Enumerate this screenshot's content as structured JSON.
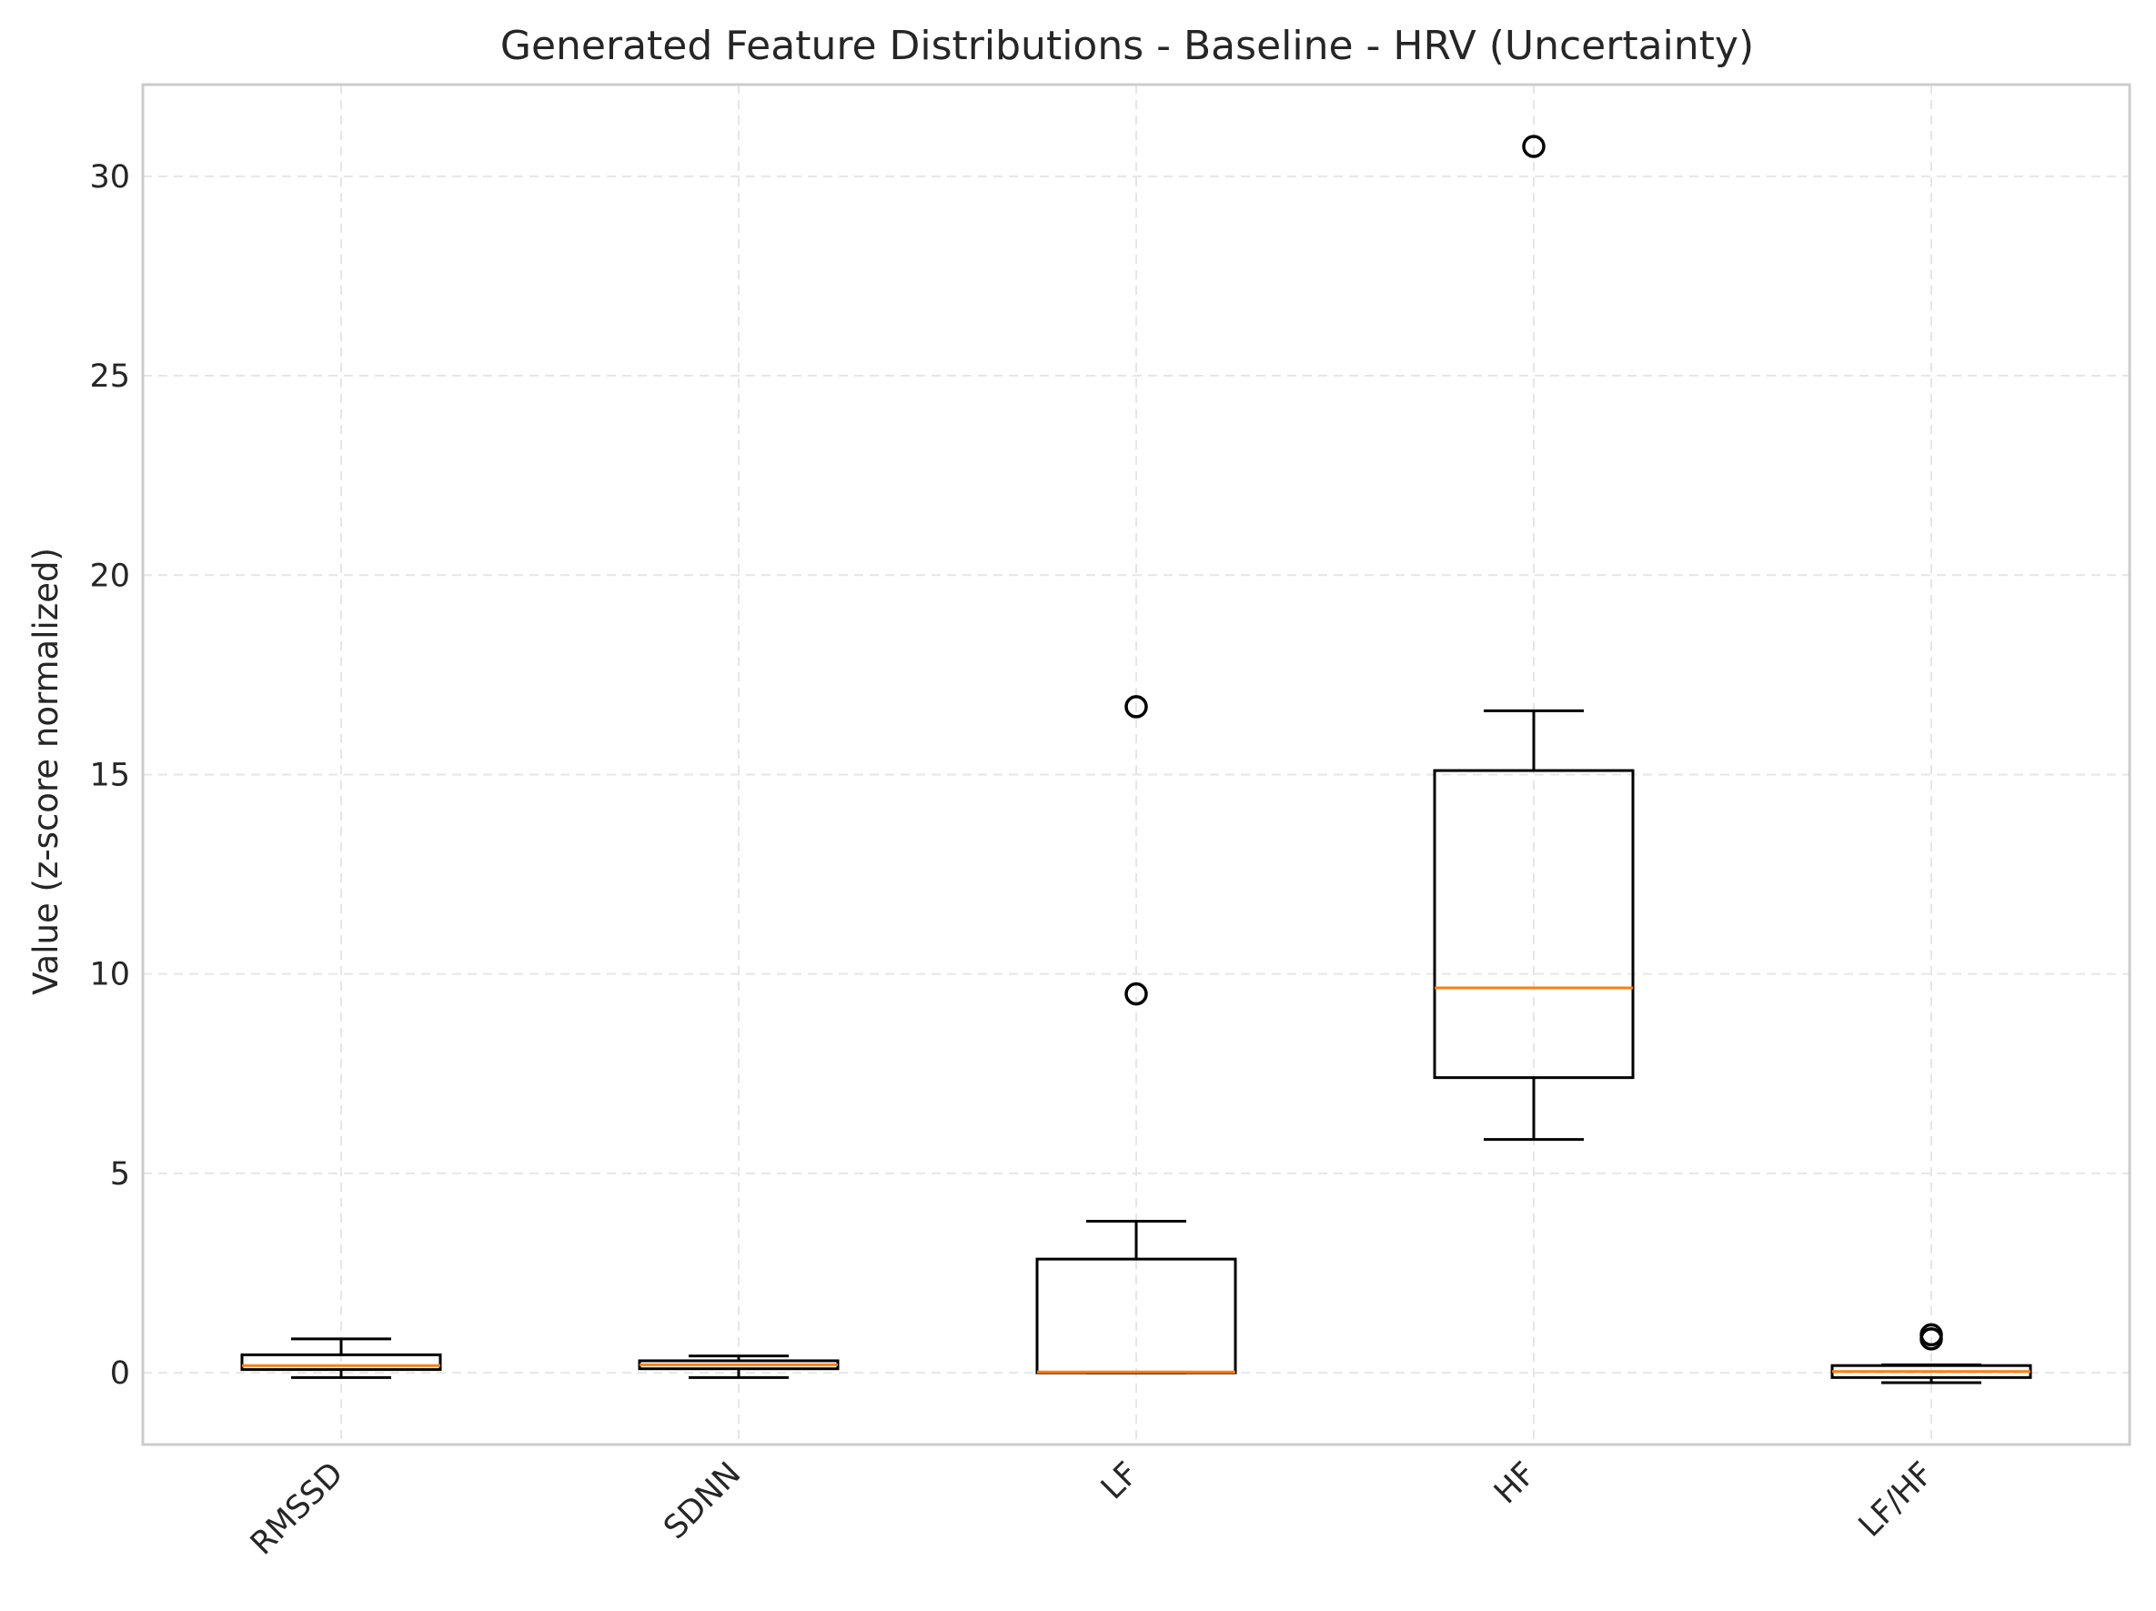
{
  "chart_data": {
    "type": "boxplot",
    "title": "Generated Feature Distributions - Baseline - HRV (Uncertainty)",
    "xlabel": "",
    "ylabel": "Value (z-score normalized)",
    "ylim": [
      -1.8,
      32.3
    ],
    "yticks": [
      0,
      5,
      10,
      15,
      20,
      25,
      30
    ],
    "categories": [
      "RMSSD",
      "SDNN",
      "LF",
      "HF",
      "LF/HF"
    ],
    "boxes": [
      {
        "label": "RMSSD",
        "whisker_low": -0.12,
        "q1": 0.08,
        "median": 0.18,
        "q3": 0.45,
        "whisker_high": 0.85,
        "outliers": []
      },
      {
        "label": "SDNN",
        "whisker_low": -0.12,
        "q1": 0.1,
        "median": 0.2,
        "q3": 0.3,
        "whisker_high": 0.42,
        "outliers": []
      },
      {
        "label": "LF",
        "whisker_low": 0.0,
        "q1": 0.0,
        "median": 0.02,
        "q3": 2.85,
        "whisker_high": 3.8,
        "outliers": [
          9.5,
          16.7
        ]
      },
      {
        "label": "HF",
        "whisker_low": 5.85,
        "q1": 7.4,
        "median": 9.65,
        "q3": 15.1,
        "whisker_high": 16.6,
        "outliers": [
          30.75
        ]
      },
      {
        "label": "LF/HF",
        "whisker_low": -0.25,
        "q1": -0.12,
        "median": 0.03,
        "q3": 0.18,
        "whisker_high": 0.2,
        "outliers": [
          0.85,
          0.95
        ]
      }
    ],
    "grid": true,
    "colors": {
      "box": "#000000",
      "median": "#ff7f0e",
      "grid": "#e6e6e6",
      "frame": "#cccccc"
    }
  }
}
